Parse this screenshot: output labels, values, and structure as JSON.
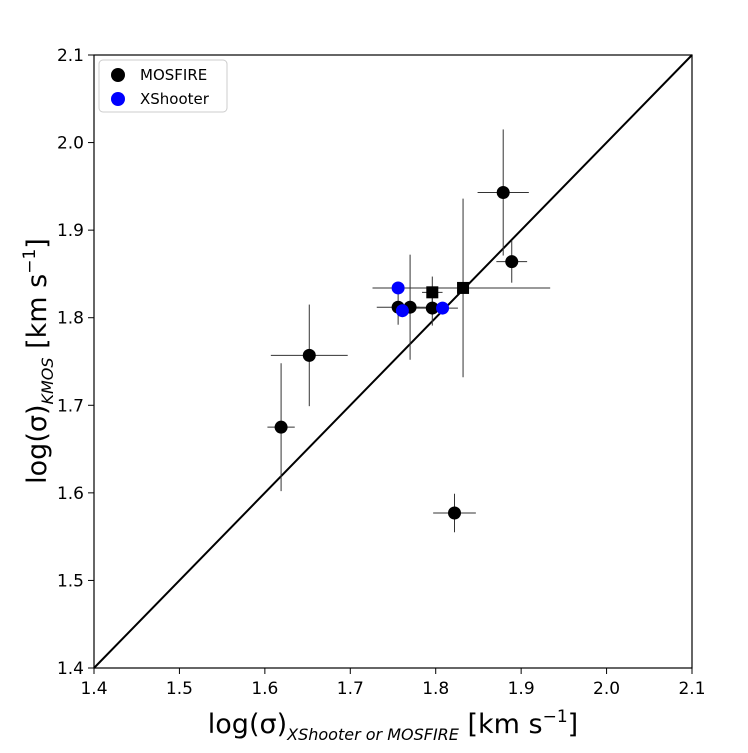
{
  "chart_data": {
    "type": "scatter",
    "title": "",
    "xlabel": {
      "main": "log(σ)",
      "subscript": "XShooter or MOSFIRE",
      "unit": " [km s",
      "sup": "−1",
      "close": "]"
    },
    "ylabel": {
      "main": "log(σ)",
      "subscript": "KMOS",
      "unit": " [km s",
      "sup": "−1",
      "close": "]"
    },
    "xlim": [
      1.4,
      2.1
    ],
    "ylim": [
      1.4,
      2.1
    ],
    "xticks": [
      "1.4",
      "1.5",
      "1.6",
      "1.7",
      "1.8",
      "1.9",
      "2.0",
      "2.1"
    ],
    "yticks": [
      "1.4",
      "1.5",
      "1.6",
      "1.7",
      "1.8",
      "1.9",
      "2.0",
      "2.1"
    ],
    "grid": false,
    "legend_position": "top-left",
    "one_to_one_line": true,
    "series": [
      {
        "name": "MOSFIRE",
        "color": "#000000",
        "points": [
          {
            "x": 1.619,
            "y": 1.675,
            "xerr": 0.016,
            "yerr": 0.073,
            "marker": "circle"
          },
          {
            "x": 1.652,
            "y": 1.757,
            "xerr": 0.045,
            "yerr": 0.058,
            "marker": "circle"
          },
          {
            "x": 1.756,
            "y": 1.812,
            "xerr": 0.025,
            "yerr": 0.02,
            "marker": "circle"
          },
          {
            "x": 1.77,
            "y": 1.812,
            "xerr": 0.02,
            "yerr": 0.06,
            "marker": "circle"
          },
          {
            "x": 1.796,
            "y": 1.811,
            "xerr": 0.03,
            "yerr": 0.02,
            "marker": "circle"
          },
          {
            "x": 1.796,
            "y": 1.829,
            "xerr": 0.012,
            "yerr": 0.018,
            "marker": "square"
          },
          {
            "x": 1.832,
            "y": 1.834,
            "xerr": 0.102,
            "yerr": 0.102,
            "marker": "square"
          },
          {
            "x": 1.822,
            "y": 1.577,
            "xerr": 0.025,
            "yerr": 0.022,
            "marker": "circle"
          },
          {
            "x": 1.879,
            "y": 1.943,
            "xerr": 0.03,
            "yerr": 0.072,
            "marker": "circle"
          },
          {
            "x": 1.889,
            "y": 1.864,
            "xerr": 0.018,
            "yerr": 0.024,
            "marker": "circle"
          }
        ]
      },
      {
        "name": "XShooter",
        "color": "#0000ff",
        "points": [
          {
            "x": 1.756,
            "y": 1.834,
            "xerr": 0.03,
            "yerr": 0.0,
            "marker": "circle"
          },
          {
            "x": 1.761,
            "y": 1.808,
            "xerr": 0.01,
            "yerr": 0.0,
            "marker": "circle"
          },
          {
            "x": 1.808,
            "y": 1.811,
            "xerr": 0.0,
            "yerr": 0.0,
            "marker": "circle"
          }
        ]
      }
    ]
  }
}
